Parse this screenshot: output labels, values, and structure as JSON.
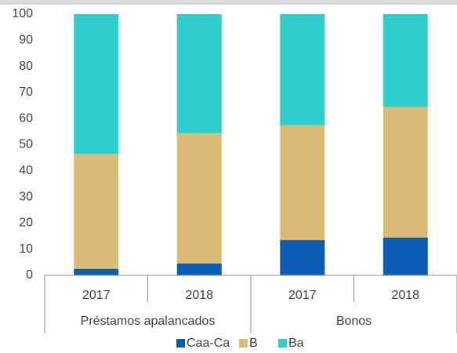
{
  "chart_data": {
    "type": "stacked-bar",
    "categories": [
      "2017",
      "2018",
      "2017",
      "2018"
    ],
    "groups": [
      "Préstamos apalancados",
      "Bonos"
    ],
    "series": [
      {
        "name": "Caa-Ca",
        "color": "#0b5cb5",
        "values": [
          2.5,
          4.5,
          13.5,
          14.5
        ]
      },
      {
        "name": "B",
        "color": "#d9bd76",
        "values": [
          44,
          50,
          44,
          50
        ]
      },
      {
        "name": "Ba",
        "color": "#2ecece",
        "values": [
          53.5,
          45.5,
          42.5,
          35.5
        ]
      }
    ],
    "ylim": [
      0,
      100
    ],
    "yticks": [
      0,
      10,
      20,
      30,
      40,
      50,
      60,
      70,
      80,
      90,
      100
    ],
    "legend": "bottom"
  }
}
